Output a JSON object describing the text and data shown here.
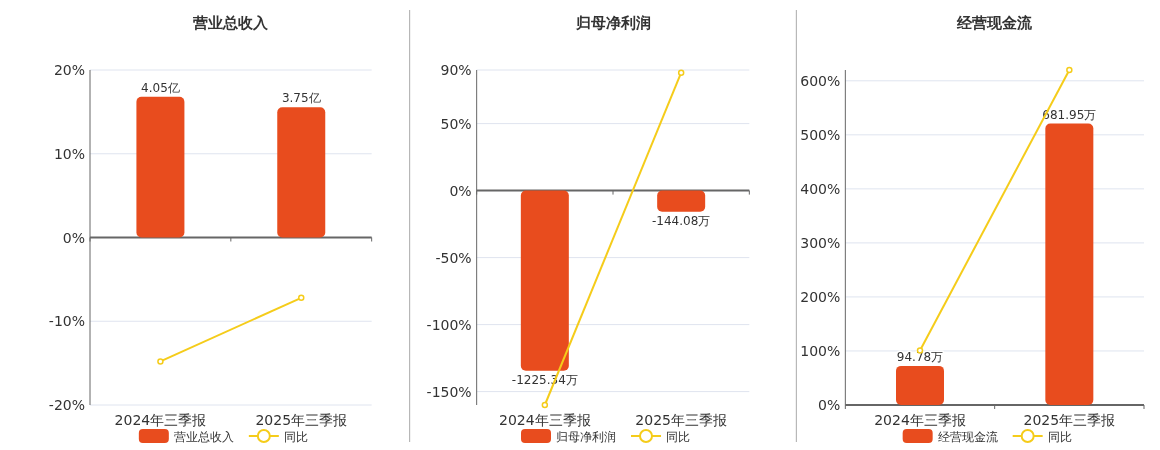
{
  "chart_data": [
    {
      "type": "bar",
      "title": "营业总收入",
      "categories": [
        "2024年三季报",
        "2025年三季报"
      ],
      "series": [
        {
          "name": "营业总收入",
          "axis": "y2",
          "color": "#e84c1e",
          "values": [
            4.05,
            3.75
          ],
          "value_labels": [
            "4.05亿",
            "3.75亿"
          ]
        },
        {
          "name": "同比",
          "type": "line",
          "color": "#f5cc1a",
          "marker": "circle",
          "values": [
            -14.8,
            -7.2
          ]
        }
      ],
      "ylim": [
        -20,
        20
      ],
      "yticks": [
        {
          "value": -20,
          "label": "-20%"
        },
        {
          "value": -10,
          "label": "-10%"
        },
        {
          "value": 0,
          "label": "0%"
        },
        {
          "value": 10,
          "label": "10%"
        },
        {
          "value": 20,
          "label": "20%"
        }
      ],
      "grid": "y",
      "legend": "bottom"
    },
    {
      "type": "bar",
      "title": "归母净利润",
      "categories": [
        "2024年三季报",
        "2025年三季报"
      ],
      "series": [
        {
          "name": "归母净利润",
          "axis": "y2",
          "color": "#e84c1e",
          "values": [
            -1225.34,
            -144.08
          ],
          "value_labels": [
            "-1225.34万",
            "-144.08万"
          ]
        },
        {
          "name": "同比",
          "type": "line",
          "color": "#f5cc1a",
          "marker": "circle",
          "values": [
            -160,
            88
          ]
        }
      ],
      "ylim": [
        -160,
        90
      ],
      "yticks": [
        {
          "value": -150,
          "label": "-150%"
        },
        {
          "value": -100,
          "label": "-100%"
        },
        {
          "value": -50,
          "label": "-50%"
        },
        {
          "value": 0,
          "label": "0%"
        },
        {
          "value": 50,
          "label": "50%"
        },
        {
          "value": 90,
          "label": "90%"
        }
      ],
      "grid": "y",
      "legend": "bottom"
    },
    {
      "type": "bar",
      "title": "经营现金流",
      "categories": [
        "2024年三季报",
        "2025年三季报"
      ],
      "series": [
        {
          "name": "经营现金流",
          "axis": "y2",
          "color": "#e84c1e",
          "values": [
            94.78,
            681.95
          ],
          "value_labels": [
            "94.78万",
            "681.95万"
          ]
        },
        {
          "name": "同比",
          "type": "line",
          "color": "#f5cc1a",
          "marker": "circle",
          "values": [
            101,
            620
          ]
        }
      ],
      "ylim": [
        0,
        620
      ],
      "yticks": [
        {
          "value": 0,
          "label": "0%"
        },
        {
          "value": 100,
          "label": "100%"
        },
        {
          "value": 200,
          "label": "200%"
        },
        {
          "value": 300,
          "label": "300%"
        },
        {
          "value": 400,
          "label": "400%"
        },
        {
          "value": 500,
          "label": "500%"
        },
        {
          "value": 600,
          "label": "600%"
        }
      ],
      "grid": "y",
      "legend": "bottom"
    }
  ]
}
